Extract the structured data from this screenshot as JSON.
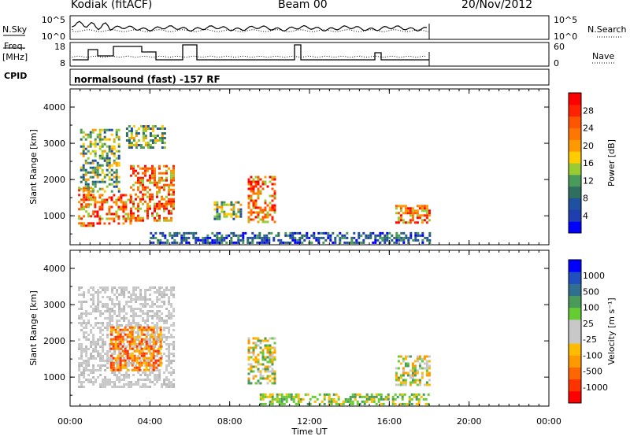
{
  "header": {
    "station": "Kodiak (fitACF)",
    "beam": "Beam 00",
    "date": "20/Nov/2012"
  },
  "strip_labels": {
    "nsky": "N.Sky",
    "nsearch": "N.Search",
    "freq": "Freq.",
    "freq_unit": "[MHz]",
    "nave": "Nave",
    "cpid": "CPID",
    "cpid_value": "normalsound (fast) -157 RF",
    "noise_ticks": [
      "10^5",
      "10^0"
    ],
    "freq_ticks": [
      "18",
      "8"
    ],
    "nave_ticks": [
      "60",
      "0"
    ]
  },
  "chart_data": [
    {
      "type": "heatmap",
      "name": "power",
      "ylabel": "Slant Range [km]",
      "xlabel": "",
      "x_ticks": [
        "00:00",
        "04:00",
        "08:00",
        "12:00",
        "16:00",
        "20:00",
        "00:00"
      ],
      "y_ticks": [
        "1000",
        "2000",
        "3000",
        "4000"
      ],
      "ylim": [
        200,
        4500
      ],
      "xlim_hours": [
        0,
        24
      ],
      "colorbar_title": "Power [dB]",
      "colorbar_ticks": [
        "28",
        "24",
        "20",
        "16",
        "12",
        "8",
        "4"
      ],
      "colorbar_colors": [
        "#0000ff",
        "#1f3fb0",
        "#2050a0",
        "#306f60",
        "#4a9a5a",
        "#99cc33",
        "#ffcc00",
        "#ff9900",
        "#ff7700",
        "#ff5500",
        "#ff2200",
        "#ff0000"
      ],
      "echo_regions": [
        {
          "t0": 0.4,
          "t1": 1.2,
          "r0": 700,
          "r1": 1800,
          "value": "high"
        },
        {
          "t0": 1.2,
          "t1": 3.0,
          "r0": 800,
          "r1": 1600,
          "value": "high"
        },
        {
          "t0": 3.0,
          "t1": 5.2,
          "r0": 900,
          "r1": 2400,
          "value": "high"
        },
        {
          "t0": 0.5,
          "t1": 2.5,
          "r0": 1700,
          "r1": 3400,
          "value": "mid"
        },
        {
          "t0": 2.8,
          "t1": 4.8,
          "r0": 2900,
          "r1": 3500,
          "value": "mid"
        },
        {
          "t0": 8.9,
          "t1": 10.3,
          "r0": 800,
          "r1": 2100,
          "value": "high"
        },
        {
          "t0": 7.2,
          "t1": 8.6,
          "r0": 900,
          "r1": 1400,
          "value": "mid"
        },
        {
          "t0": 16.3,
          "t1": 18.0,
          "r0": 800,
          "r1": 1300,
          "value": "high"
        },
        {
          "t0": 4.0,
          "t1": 18.0,
          "r0": 250,
          "r1": 550,
          "value": "low"
        }
      ]
    },
    {
      "type": "heatmap",
      "name": "velocity",
      "ylabel": "Slant Range [km]",
      "xlabel": "Time UT",
      "x_ticks": [
        "00:00",
        "04:00",
        "08:00",
        "12:00",
        "16:00",
        "20:00",
        "00:00"
      ],
      "y_ticks": [
        "1000",
        "2000",
        "3000",
        "4000"
      ],
      "ylim": [
        200,
        4500
      ],
      "xlim_hours": [
        0,
        24
      ],
      "colorbar_title": "Velocity [m s⁻¹]",
      "colorbar_ticks": [
        "1000",
        "500",
        "100",
        "25",
        "-25",
        "-100",
        "-500",
        "-1000"
      ],
      "colorbar_colors": [
        "#ff0000",
        "#ff3300",
        "#ff6600",
        "#ff9900",
        "#ffbb00",
        "#c8c8c8",
        "#c8c8c8",
        "#66cc33",
        "#4a9a5a",
        "#306f90",
        "#2050c0",
        "#0000ff"
      ],
      "echo_regions": [
        {
          "t0": 0.4,
          "t1": 5.2,
          "r0": 700,
          "r1": 3500,
          "value": "ground"
        },
        {
          "t0": 2.0,
          "t1": 4.5,
          "r0": 1200,
          "r1": 2400,
          "value": "away"
        },
        {
          "t0": 8.9,
          "t1": 10.3,
          "r0": 800,
          "r1": 2100,
          "value": "mixed"
        },
        {
          "t0": 16.3,
          "t1": 18.0,
          "r0": 800,
          "r1": 1600,
          "value": "mixed"
        },
        {
          "t0": 9.5,
          "t1": 18.0,
          "r0": 250,
          "r1": 550,
          "value": "toward"
        }
      ]
    }
  ]
}
